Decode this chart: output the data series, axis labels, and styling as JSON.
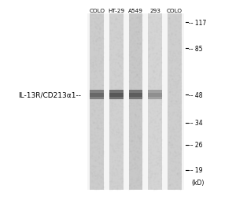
{
  "lane_labels": [
    "COLO",
    "HT-29",
    "A549",
    "293",
    "COLO"
  ],
  "mw_markers": [
    117,
    85,
    48,
    34,
    26,
    19
  ],
  "mw_label": "(kD)",
  "antibody_label": "IL-13R/CD213α1--",
  "band_kd": 48,
  "fig_width": 3.0,
  "fig_height": 2.55,
  "dpi": 100,
  "bg_color": "#ffffff",
  "lane_bg_color": "#d8d8d8",
  "lane_gap_color": "#f0f0f0",
  "band_positions": [
    {
      "lane": 0,
      "kd": 48,
      "intensity": 0.6
    },
    {
      "lane": 1,
      "kd": 48,
      "intensity": 0.75
    },
    {
      "lane": 2,
      "kd": 48,
      "intensity": 0.7
    },
    {
      "lane": 3,
      "kd": 48,
      "intensity": 0.25
    },
    {
      "lane": 4,
      "kd": 48,
      "intensity": 0.0
    }
  ],
  "lane_colors": [
    "#cccccc",
    "#d0d0d0",
    "#c8c8c8",
    "#d4d4d4",
    "#cecece"
  ],
  "log_kd_min": 2.7,
  "log_kd_max": 4.87
}
